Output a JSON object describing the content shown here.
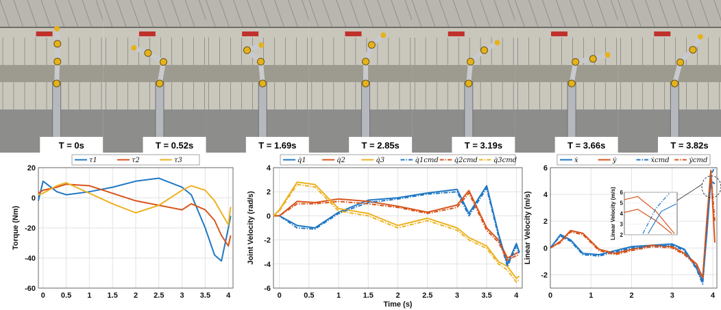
{
  "frames": [
    {
      "time_label": "T = 0s",
      "arm_angles": [
        88,
        90,
        92
      ]
    },
    {
      "time_label": "T = 0.52s",
      "arm_angles": [
        80,
        150,
        160
      ]
    },
    {
      "time_label": "T = 1.69s",
      "arm_angles": [
        95,
        140,
        20
      ]
    },
    {
      "time_label": "T = 2.85s",
      "arm_angles": [
        90,
        70,
        40
      ]
    },
    {
      "time_label": "T = 3.19s",
      "arm_angles": [
        85,
        40,
        30
      ]
    },
    {
      "time_label": "T = 3.66s",
      "arm_angles": [
        80,
        10,
        15
      ]
    },
    {
      "time_label": "T = 3.82s",
      "arm_angles": [
        75,
        45,
        60
      ]
    }
  ],
  "colors": {
    "blue": "#1f77c4",
    "orange": "#d95319",
    "yellow": "#edb120",
    "sky": "#a8b7c4",
    "wall": "#c9c6bc",
    "floor": "#8d8e8c",
    "robot": "#e5b21b"
  },
  "chart_data": [
    {
      "type": "line",
      "title": "",
      "xlabel": "",
      "ylabel": "Torque (Nm)",
      "xlim": [
        -0.1,
        4.1
      ],
      "ylim": [
        -60,
        20
      ],
      "xticks": [
        0,
        0.5,
        1,
        1.5,
        2,
        2.5,
        3,
        3.5,
        4
      ],
      "yticks": [
        20,
        0,
        -20,
        -40,
        -60
      ],
      "grid": true,
      "legend_position": "top",
      "x": [
        -0.1,
        0,
        0.3,
        0.5,
        1,
        1.5,
        2,
        2.5,
        3,
        3.2,
        3.5,
        3.7,
        3.85,
        4,
        4.05
      ],
      "series": [
        {
          "name": "τ1",
          "color": "#1f77c4",
          "dash": "solid",
          "values": [
            -2,
            11,
            4,
            2,
            4,
            7,
            11,
            13,
            7,
            2,
            -20,
            -38,
            -42,
            -20,
            -12
          ]
        },
        {
          "name": "τ2",
          "color": "#d95319",
          "dash": "solid",
          "values": [
            3,
            5,
            7,
            9,
            8,
            3,
            -2,
            -5,
            -8,
            -4,
            -8,
            -15,
            -25,
            -32,
            -25
          ]
        },
        {
          "name": "τ3",
          "color": "#edb120",
          "dash": "solid",
          "values": [
            2,
            3,
            8,
            10,
            3,
            -4,
            -10,
            -5,
            5,
            8,
            5,
            -2,
            -10,
            -18,
            -6
          ]
        }
      ]
    },
    {
      "type": "line",
      "title": "",
      "xlabel": "Time (s)",
      "ylabel": "Joint Velocity (rad/s)",
      "xlim": [
        -0.1,
        4.1
      ],
      "ylim": [
        -6,
        4
      ],
      "xticks": [
        0,
        0.5,
        1,
        1.5,
        2,
        2.5,
        3,
        3.5,
        4
      ],
      "yticks": [
        4,
        2,
        0,
        -2,
        -4,
        -6
      ],
      "grid": true,
      "legend_position": "top",
      "x": [
        -0.1,
        0,
        0.3,
        0.6,
        1,
        1.5,
        2,
        2.5,
        3,
        3.2,
        3.5,
        3.7,
        3.85,
        4,
        4.05
      ],
      "series": [
        {
          "name": "q̇1",
          "color": "#1f77c4",
          "dash": "solid",
          "values": [
            0,
            0,
            -0.8,
            -1,
            0.3,
            1.3,
            1.5,
            1.9,
            2.2,
            0.2,
            2.5,
            -1.5,
            -4,
            -2.3,
            -3
          ]
        },
        {
          "name": "q̇2",
          "color": "#d95319",
          "dash": "solid",
          "values": [
            0,
            0,
            1.2,
            1.1,
            1.4,
            1.2,
            0.8,
            0.3,
            0.9,
            2.1,
            -1,
            -2,
            -3.5,
            -3.1,
            -3
          ]
        },
        {
          "name": "q̇3",
          "color": "#edb120",
          "dash": "solid",
          "values": [
            0,
            0.5,
            2.8,
            2.6,
            0.6,
            0.2,
            -0.8,
            -0.2,
            -1,
            -1.8,
            -2.5,
            -3.8,
            -4.2,
            -5.2,
            -5
          ]
        },
        {
          "name": "q̇1cmd",
          "color": "#1f77c4",
          "dash": "dashdot",
          "values": [
            0,
            0,
            -1,
            -1.1,
            0.2,
            1.1,
            1.4,
            1.8,
            2,
            0,
            2.3,
            -1.7,
            -4.2,
            -2.5,
            -3.1
          ]
        },
        {
          "name": "q̇2cmd",
          "color": "#d95319",
          "dash": "dashdot",
          "values": [
            0,
            0,
            1,
            1,
            1.2,
            1,
            0.7,
            0.2,
            0.7,
            1.9,
            -1.2,
            -2.2,
            -3.7,
            -3.3,
            -3.2
          ]
        },
        {
          "name": "q̇3cmd",
          "color": "#edb120",
          "dash": "dashdot",
          "values": [
            0,
            0.4,
            2.6,
            2.4,
            0.4,
            0,
            -1,
            -0.4,
            -1.2,
            -2,
            -2.7,
            -4,
            -4.5,
            -5.5,
            -5.3
          ]
        }
      ]
    },
    {
      "type": "line",
      "title": "",
      "xlabel": "",
      "ylabel": "Linear Velocity (m/s)",
      "xlim": [
        0,
        4.1
      ],
      "ylim": [
        -3,
        6
      ],
      "xticks": [
        0,
        1,
        2,
        3,
        4
      ],
      "yticks": [
        6,
        4,
        2,
        0,
        -2
      ],
      "grid": true,
      "legend_position": "top",
      "x": [
        0,
        0.25,
        0.5,
        0.8,
        1.2,
        1.6,
        2,
        2.5,
        3,
        3.3,
        3.6,
        3.75,
        3.85,
        3.95,
        4.05
      ],
      "series": [
        {
          "name": "ẋ",
          "color": "#1f77c4",
          "dash": "solid",
          "values": [
            0,
            1,
            0.6,
            -0.4,
            -0.5,
            -0.2,
            0.1,
            0.2,
            0.3,
            -0.1,
            -1.5,
            -2.5,
            1,
            5,
            4.8
          ]
        },
        {
          "name": "ẏ",
          "color": "#d95319",
          "dash": "solid",
          "values": [
            0,
            0.5,
            1.3,
            1.1,
            -0.1,
            -0.4,
            -0.1,
            0.2,
            0.1,
            -0.4,
            -1.2,
            -2.2,
            2,
            5.8,
            0.4
          ]
        },
        {
          "name": "ẋcmd",
          "color": "#1f77c4",
          "dash": "dashdot",
          "values": [
            0,
            0.9,
            0.5,
            -0.5,
            -0.6,
            -0.3,
            0,
            0.1,
            0.2,
            -0.2,
            -1.6,
            -2.7,
            1.2,
            5.5,
            6
          ]
        },
        {
          "name": "ẏcmd",
          "color": "#d95319",
          "dash": "dashdot",
          "values": [
            0,
            0.4,
            1.2,
            1.0,
            -0.2,
            -0.5,
            -0.2,
            0.1,
            0,
            -0.5,
            -1.3,
            -2.3,
            1.8,
            5.6,
            2
          ]
        }
      ],
      "inset": {
        "ylabel": "Linear Velocity (m/s)",
        "ylim": [
          2,
          6
        ],
        "yticks": [
          6,
          5,
          4,
          3,
          2
        ]
      }
    }
  ]
}
